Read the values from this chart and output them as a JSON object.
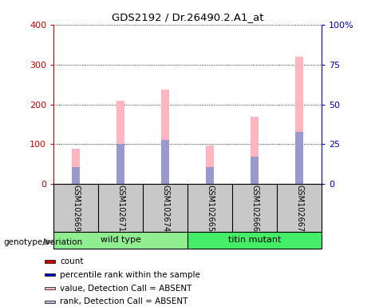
{
  "title": "GDS2192 / Dr.26490.2.A1_at",
  "samples": [
    "GSM102669",
    "GSM102671",
    "GSM102674",
    "GSM102665",
    "GSM102666",
    "GSM102667"
  ],
  "group_labels": [
    "wild type",
    "titin mutant"
  ],
  "wt_color": "#90EE90",
  "tm_color": "#44EE66",
  "pink_values": [
    88,
    210,
    238,
    97,
    170,
    320
  ],
  "blue_values": [
    42,
    100,
    110,
    42,
    68,
    132
  ],
  "ylim_left": [
    0,
    400
  ],
  "ylim_right": [
    0,
    100
  ],
  "left_ticks": [
    0,
    100,
    200,
    300,
    400
  ],
  "right_ticks": [
    0,
    25,
    50,
    75,
    100
  ],
  "right_tick_labels": [
    "0",
    "25",
    "50",
    "75",
    "100%"
  ],
  "pink_color": "#FFB6C1",
  "blue_color": "#9999CC",
  "left_axis_color": "#CC0000",
  "right_axis_color": "#0000CC",
  "bg_color": "#C8C8C8",
  "legend_items": [
    {
      "label": "count",
      "color": "#CC0000"
    },
    {
      "label": "percentile rank within the sample",
      "color": "#0000CC"
    },
    {
      "label": "value, Detection Call = ABSENT",
      "color": "#FFB6C1"
    },
    {
      "label": "rank, Detection Call = ABSENT",
      "color": "#BBBBDD"
    }
  ]
}
